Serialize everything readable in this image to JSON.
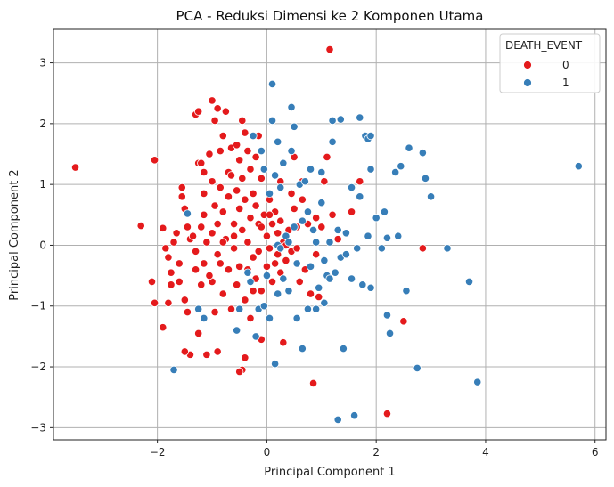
{
  "chart_data": {
    "type": "scatter",
    "title": "PCA - Reduksi Dimensi ke 2 Komponen Utama",
    "xlabel": "Principal Component 1",
    "ylabel": "Principal Component 2",
    "xlim": [
      -3.9,
      6.2
    ],
    "ylim": [
      -3.2,
      3.55
    ],
    "xticks": [
      -2,
      0,
      2,
      4,
      6
    ],
    "yticks": [
      -3,
      -2,
      -1,
      0,
      1,
      2,
      3
    ],
    "grid": true,
    "legend": {
      "title": "DEATH_EVENT",
      "placement": "top-right"
    },
    "series": [
      {
        "name": "0",
        "color": "#e41a1c",
        "points": [
          [
            -3.5,
            1.28
          ],
          [
            -2.3,
            0.32
          ],
          [
            -2.05,
            1.4
          ],
          [
            -2.1,
            -0.6
          ],
          [
            -2.05,
            -0.95
          ],
          [
            -1.9,
            -1.35
          ],
          [
            -1.9,
            0.28
          ],
          [
            -1.85,
            -0.05
          ],
          [
            -1.8,
            -0.2
          ],
          [
            -1.75,
            -0.45
          ],
          [
            -1.7,
            0.05
          ],
          [
            -1.65,
            0.2
          ],
          [
            -1.6,
            -0.3
          ],
          [
            -1.6,
            -0.6
          ],
          [
            -1.55,
            0.8
          ],
          [
            -1.55,
            0.95
          ],
          [
            -1.5,
            0.6
          ],
          [
            -1.5,
            -0.9
          ],
          [
            -1.45,
            -1.1
          ],
          [
            -1.4,
            -1.8
          ],
          [
            -1.4,
            0.1
          ],
          [
            -1.35,
            0.15
          ],
          [
            -1.3,
            -0.1
          ],
          [
            -1.3,
            -0.4
          ],
          [
            -1.3,
            2.15
          ],
          [
            -1.25,
            2.2
          ],
          [
            -1.25,
            1.35
          ],
          [
            -1.25,
            -1.45
          ],
          [
            -1.2,
            1.35
          ],
          [
            -1.2,
            0.3
          ],
          [
            -1.15,
            1.2
          ],
          [
            -1.15,
            0.85
          ],
          [
            -1.15,
            0.5
          ],
          [
            -1.15,
            -0.3
          ],
          [
            -1.1,
            -1.8
          ],
          [
            -1.1,
            0.05
          ],
          [
            -1.05,
            1.5
          ],
          [
            -1.0,
            2.38
          ],
          [
            -1.0,
            1.05
          ],
          [
            -1.0,
            0.2
          ],
          [
            -1.0,
            -0.6
          ],
          [
            -0.95,
            2.05
          ],
          [
            -0.95,
            0.65
          ],
          [
            -0.95,
            -1.1
          ],
          [
            -0.9,
            2.25
          ],
          [
            -0.9,
            0.35
          ],
          [
            -0.9,
            -0.15
          ],
          [
            -0.85,
            1.55
          ],
          [
            -0.85,
            0.95
          ],
          [
            -0.85,
            -0.3
          ],
          [
            -0.8,
            1.8
          ],
          [
            -0.8,
            0.55
          ],
          [
            -0.8,
            -0.8
          ],
          [
            -0.75,
            2.2
          ],
          [
            -0.75,
            0.1
          ],
          [
            -0.7,
            1.2
          ],
          [
            -0.7,
            0.8
          ],
          [
            -0.7,
            -0.4
          ],
          [
            -0.65,
            1.6
          ],
          [
            -0.65,
            -1.05
          ],
          [
            -0.6,
            0.35
          ],
          [
            -0.6,
            -0.05
          ],
          [
            -0.55,
            1.65
          ],
          [
            -0.55,
            0.9
          ],
          [
            -0.55,
            -0.65
          ],
          [
            -0.5,
            1.4
          ],
          [
            -0.5,
            0.6
          ],
          [
            -0.5,
            -0.35
          ],
          [
            -0.45,
            2.05
          ],
          [
            -0.45,
            1.1
          ],
          [
            -0.45,
            0.25
          ],
          [
            -0.4,
            1.85
          ],
          [
            -0.4,
            0.75
          ],
          [
            -0.4,
            -0.9
          ],
          [
            -0.35,
            1.55
          ],
          [
            -0.35,
            0.05
          ],
          [
            -0.35,
            -0.4
          ],
          [
            -0.3,
            1.25
          ],
          [
            -0.3,
            0.45
          ],
          [
            -0.3,
            -1.2
          ],
          [
            -0.25,
            0.85
          ],
          [
            -0.25,
            -0.2
          ],
          [
            -0.2,
            1.45
          ],
          [
            -0.2,
            0.65
          ],
          [
            -0.2,
            -0.55
          ],
          [
            -0.15,
            0.35
          ],
          [
            -0.15,
            -0.1
          ],
          [
            -0.1,
            1.1
          ],
          [
            -0.1,
            -0.75
          ],
          [
            -0.1,
            -1.55
          ],
          [
            -0.05,
            0.5
          ],
          [
            0.0,
            0.15
          ],
          [
            0.0,
            -0.35
          ],
          [
            0.05,
            0.75
          ],
          [
            0.05,
            -0.05
          ],
          [
            0.1,
            0.35
          ],
          [
            0.1,
            -0.6
          ],
          [
            0.15,
            0.55
          ],
          [
            0.15,
            -0.3
          ],
          [
            0.2,
            0.2
          ],
          [
            0.2,
            -0.15
          ],
          [
            0.25,
            0.4
          ],
          [
            0.25,
            -0.45
          ],
          [
            0.3,
            0.05
          ],
          [
            0.3,
            -1.6
          ],
          [
            0.35,
            -0.25
          ],
          [
            0.4,
            0.25
          ],
          [
            0.45,
            0.85
          ],
          [
            0.45,
            -0.1
          ],
          [
            0.5,
            0.6
          ],
          [
            0.55,
            0.3
          ],
          [
            0.6,
            -0.6
          ],
          [
            0.65,
            1.05
          ],
          [
            0.7,
            -0.4
          ],
          [
            0.75,
            0.35
          ],
          [
            0.8,
            -0.8
          ],
          [
            0.85,
            -2.27
          ],
          [
            0.9,
            0.45
          ],
          [
            0.95,
            -0.85
          ],
          [
            1.0,
            0.3
          ],
          [
            1.05,
            1.05
          ],
          [
            1.1,
            1.45
          ],
          [
            1.15,
            3.22
          ],
          [
            1.3,
            0.1
          ],
          [
            1.55,
            0.55
          ],
          [
            1.7,
            1.05
          ],
          [
            2.2,
            -2.77
          ],
          [
            2.5,
            -1.25
          ],
          [
            2.85,
            -0.05
          ],
          [
            -1.5,
            -1.75
          ],
          [
            -0.45,
            -2.05
          ],
          [
            -0.5,
            -2.08
          ],
          [
            -0.4,
            -1.85
          ],
          [
            -0.9,
            -1.75
          ],
          [
            -1.8,
            -0.95
          ],
          [
            -1.75,
            -0.65
          ],
          [
            -1.45,
            0.3
          ],
          [
            -1.05,
            -0.5
          ],
          [
            -0.6,
            0.15
          ],
          [
            0.35,
            0.0
          ],
          [
            0.55,
            -0.05
          ],
          [
            0.05,
            0.5
          ],
          [
            -0.25,
            -0.75
          ],
          [
            -0.1,
            0.3
          ],
          [
            0.25,
            1.05
          ],
          [
            0.5,
            1.45
          ],
          [
            -0.15,
            1.8
          ],
          [
            -0.65,
            1.15
          ],
          [
            -1.2,
            -0.65
          ],
          [
            -0.8,
            0.05
          ],
          [
            0.65,
            0.75
          ],
          [
            0.9,
            -0.15
          ],
          [
            1.2,
            0.5
          ]
        ]
      },
      {
        "name": "1",
        "color": "#377eb8",
        "points": [
          [
            -1.7,
            -2.05
          ],
          [
            -1.45,
            0.52
          ],
          [
            -1.25,
            -1.05
          ],
          [
            -1.15,
            -1.2
          ],
          [
            -0.55,
            -1.4
          ],
          [
            -0.5,
            -1.05
          ],
          [
            -0.35,
            -0.45
          ],
          [
            -0.3,
            -0.6
          ],
          [
            -0.25,
            1.8
          ],
          [
            -0.2,
            -1.5
          ],
          [
            -0.15,
            -1.05
          ],
          [
            -0.1,
            1.55
          ],
          [
            -0.05,
            -1.0
          ],
          [
            0.0,
            -0.5
          ],
          [
            0.05,
            -1.2
          ],
          [
            0.05,
            0.85
          ],
          [
            0.1,
            2.65
          ],
          [
            0.1,
            2.05
          ],
          [
            0.15,
            -1.95
          ],
          [
            0.15,
            1.15
          ],
          [
            0.2,
            -0.8
          ],
          [
            0.2,
            0.0
          ],
          [
            0.25,
            0.95
          ],
          [
            0.3,
            -0.55
          ],
          [
            0.3,
            1.35
          ],
          [
            0.35,
            0.15
          ],
          [
            0.4,
            -0.75
          ],
          [
            0.45,
            2.27
          ],
          [
            0.45,
            1.55
          ],
          [
            0.5,
            0.3
          ],
          [
            0.5,
            1.95
          ],
          [
            0.55,
            -1.2
          ],
          [
            0.55,
            -0.3
          ],
          [
            0.6,
            1.0
          ],
          [
            0.65,
            -1.7
          ],
          [
            0.7,
            1.05
          ],
          [
            0.75,
            0.55
          ],
          [
            0.8,
            -0.35
          ],
          [
            0.8,
            1.25
          ],
          [
            0.85,
            0.25
          ],
          [
            0.9,
            -1.05
          ],
          [
            0.95,
            -0.7
          ],
          [
            1.0,
            0.7
          ],
          [
            1.0,
            1.2
          ],
          [
            1.05,
            -0.95
          ],
          [
            1.1,
            -0.5
          ],
          [
            1.15,
            0.05
          ],
          [
            1.2,
            2.05
          ],
          [
            1.2,
            1.7
          ],
          [
            1.25,
            -0.45
          ],
          [
            1.3,
            0.25
          ],
          [
            1.35,
            -0.2
          ],
          [
            1.35,
            2.07
          ],
          [
            1.4,
            -1.7
          ],
          [
            1.45,
            -0.15
          ],
          [
            1.55,
            0.95
          ],
          [
            1.6,
            -2.8
          ],
          [
            1.65,
            -0.05
          ],
          [
            1.7,
            0.8
          ],
          [
            1.7,
            2.1
          ],
          [
            1.75,
            -0.65
          ],
          [
            1.8,
            1.8
          ],
          [
            1.85,
            1.75
          ],
          [
            1.85,
            0.15
          ],
          [
            1.9,
            1.25
          ],
          [
            1.9,
            -0.7
          ],
          [
            2.0,
            0.45
          ],
          [
            2.1,
            -0.05
          ],
          [
            2.2,
            -1.15
          ],
          [
            2.2,
            0.12
          ],
          [
            2.25,
            -1.45
          ],
          [
            2.35,
            1.2
          ],
          [
            2.4,
            0.15
          ],
          [
            2.45,
            1.3
          ],
          [
            2.55,
            -0.75
          ],
          [
            2.6,
            1.6
          ],
          [
            2.75,
            -2.02
          ],
          [
            2.85,
            1.52
          ],
          [
            2.9,
            1.1
          ],
          [
            3.0,
            0.8
          ],
          [
            3.3,
            -0.05
          ],
          [
            3.7,
            -0.6
          ],
          [
            3.85,
            -2.25
          ],
          [
            5.7,
            1.3
          ],
          [
            1.3,
            -2.87
          ],
          [
            0.2,
            1.7
          ],
          [
            0.65,
            0.4
          ],
          [
            1.15,
            -0.55
          ],
          [
            1.55,
            -0.55
          ],
          [
            0.75,
            -1.05
          ],
          [
            0.4,
            0.05
          ],
          [
            -0.05,
            1.25
          ],
          [
            1.05,
            -0.25
          ],
          [
            1.45,
            0.2
          ],
          [
            2.15,
            0.55
          ],
          [
            0.25,
            -0.05
          ],
          [
            1.9,
            1.8
          ],
          [
            0.9,
            0.05
          ]
        ]
      }
    ]
  }
}
